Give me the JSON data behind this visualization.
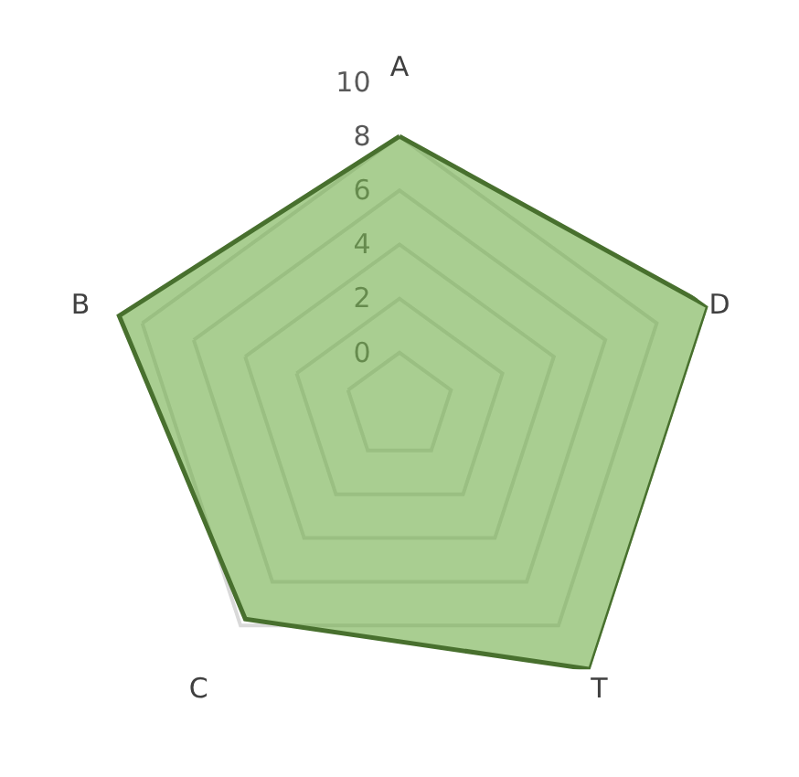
{
  "chart_data": {
    "type": "radar",
    "categories": [
      "A",
      "D",
      "T",
      "C",
      "B"
    ],
    "series": [
      {
        "color": "#70ad47",
        "values": [
          8,
          10,
          10,
          7.7,
          8.9
        ]
      }
    ],
    "ylim": [
      -2,
      10
    ],
    "yticks": [
      0,
      2,
      4,
      6,
      8,
      10
    ],
    "grid": true,
    "legend": false,
    "marker": "none"
  }
}
